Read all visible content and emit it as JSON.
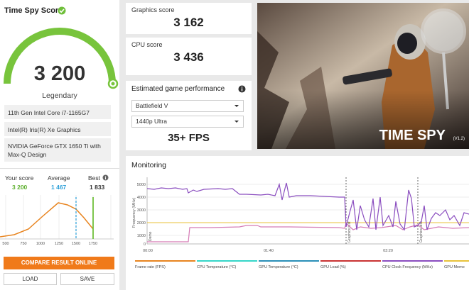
{
  "score_panel": {
    "title": "Time Spy Score",
    "score": "3 200",
    "rank": "Legendary",
    "hardware": [
      "11th Gen Intel Core i7-1165G7",
      "Intel(R) Iris(R) Xe Graphics",
      "NVIDIA GeForce GTX 1650 Ti with Max-Q Design"
    ]
  },
  "comparison": {
    "labels": [
      "Your score",
      "Average",
      "Best"
    ],
    "values": [
      "3 200",
      "1 467",
      "1 833"
    ],
    "axis_labels": [
      "500",
      "750",
      "1000",
      "1250",
      "1500",
      "1750"
    ]
  },
  "buttons": {
    "compare": "COMPARE RESULT ONLINE",
    "load": "LOAD",
    "save": "SAVE"
  },
  "graphics": {
    "label": "Graphics score",
    "value": "3 162"
  },
  "cpu": {
    "label": "CPU score",
    "value": "3 436"
  },
  "game_performance": {
    "title": "Estimated game performance",
    "game": "Battlefield V",
    "preset": "1440p Ultra",
    "result": "35+ FPS"
  },
  "banner": {
    "title": "TIME SPY",
    "version": "(V1.2)"
  },
  "monitoring": {
    "title": "Monitoring",
    "y_axis_label": "Frequency (MHz)",
    "y_ticks": [
      "5000",
      "4000",
      "3000",
      "2000",
      "1000",
      "0"
    ],
    "x_ticks": [
      "00:00",
      "01:40",
      "03:20"
    ],
    "markers": [
      "Demo",
      "Graphics test",
      "Graphics test"
    ],
    "legend": [
      "Frame rate (FPS)",
      "CPU Temperature (°C)",
      "GPU Temperature (°C)",
      "GPU Load (%)",
      "CPU Clock Frequency (MHz)",
      "GPU Memo"
    ]
  }
}
